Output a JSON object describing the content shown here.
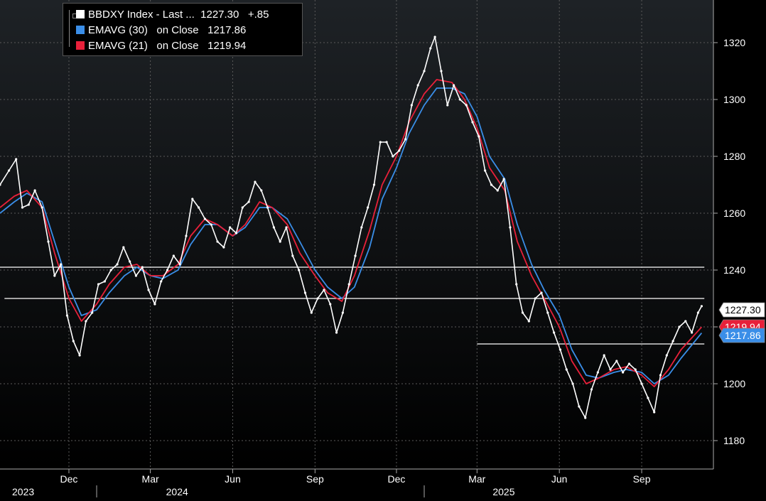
{
  "chart_data": {
    "type": "line",
    "colors": {
      "background_top": "#1e2226",
      "background_bottom": "#000000",
      "grid": "#5a5a5a",
      "price": "#ffffff",
      "ema30": "#3a8ee8",
      "ema21": "#e8203a"
    },
    "y_axis": {
      "position": "right",
      "ylim": [
        1170,
        1335
      ],
      "ticks": [
        1180,
        1200,
        1220,
        1240,
        1260,
        1280,
        1300,
        1320
      ],
      "tick_labels": [
        "1180",
        "1200",
        "",
        "1240",
        "1260",
        "1280",
        "1300",
        "1320"
      ]
    },
    "x_axis": {
      "months": [
        {
          "label": "Dec",
          "date": "2023-12-01"
        },
        {
          "label": "Mar",
          "date": "2024-03-01"
        },
        {
          "label": "Jun",
          "date": "2024-06-01"
        },
        {
          "label": "Sep",
          "date": "2024-09-01"
        },
        {
          "label": "Dec",
          "date": "2024-12-01"
        },
        {
          "label": "Mar",
          "date": "2025-03-01"
        },
        {
          "label": "Jun",
          "date": "2025-06-01"
        },
        {
          "label": "Sep",
          "date": "2025-09-01"
        }
      ],
      "years": [
        {
          "label": "2023",
          "date": "2023-09-25"
        },
        {
          "label": "2024",
          "date": "2024-03-15"
        },
        {
          "label": "2025",
          "date": "2025-03-15"
        }
      ],
      "year_dividers": [
        "2024-01-01",
        "2025-01-01"
      ]
    },
    "legend": {
      "placement": "top-left",
      "entries": [
        {
          "label": "BBDXY Index - Last ...  1227.30   +.85",
          "color": "#ffffff"
        },
        {
          "label": "EMAVG (30)   on Close   1217.86",
          "color": "#3a8ee8"
        },
        {
          "label": "EMAVG (21)   on Close   1219.94",
          "color": "#e8203a"
        }
      ]
    },
    "price_tags": [
      {
        "label": "1227.30",
        "value": 1227.3,
        "bg": "#ffffff",
        "fg": "#000000"
      },
      {
        "label": "1219.94",
        "value": 1219.94,
        "bg": "#e8203a",
        "fg": "#ffffff"
      },
      {
        "label": "1217.86",
        "value": 1217.86,
        "bg": "#3a8ee8",
        "fg": "#ffffff"
      }
    ],
    "horizontal_lines": [
      {
        "value": 1241,
        "from": "2023-09-15",
        "to": "2025-11-10"
      },
      {
        "value": 1230,
        "from": "2023-09-20",
        "to": "2025-11-10"
      },
      {
        "value": 1214,
        "from": "2025-03-01",
        "to": "2025-11-10"
      }
    ],
    "series": [
      {
        "key": "price",
        "name": "BBDXY Index",
        "points": [
          [
            "2023-09-15",
            1270
          ],
          [
            "2023-09-25",
            1275
          ],
          [
            "2023-10-03",
            1279
          ],
          [
            "2023-10-10",
            1262
          ],
          [
            "2023-10-17",
            1263
          ],
          [
            "2023-10-24",
            1268
          ],
          [
            "2023-11-01",
            1262
          ],
          [
            "2023-11-08",
            1250
          ],
          [
            "2023-11-15",
            1238
          ],
          [
            "2023-11-22",
            1242
          ],
          [
            "2023-11-29",
            1224
          ],
          [
            "2023-12-06",
            1215
          ],
          [
            "2023-12-13",
            1210
          ],
          [
            "2023-12-20",
            1222
          ],
          [
            "2023-12-27",
            1225
          ],
          [
            "2024-01-03",
            1235
          ],
          [
            "2024-01-10",
            1236
          ],
          [
            "2024-01-17",
            1240
          ],
          [
            "2024-01-24",
            1242
          ],
          [
            "2024-01-31",
            1248
          ],
          [
            "2024-02-07",
            1243
          ],
          [
            "2024-02-14",
            1238
          ],
          [
            "2024-02-21",
            1241
          ],
          [
            "2024-02-28",
            1233
          ],
          [
            "2024-03-06",
            1228
          ],
          [
            "2024-03-13",
            1236
          ],
          [
            "2024-03-20",
            1240
          ],
          [
            "2024-03-27",
            1245
          ],
          [
            "2024-04-03",
            1242
          ],
          [
            "2024-04-10",
            1252
          ],
          [
            "2024-04-17",
            1265
          ],
          [
            "2024-04-24",
            1262
          ],
          [
            "2024-05-01",
            1258
          ],
          [
            "2024-05-08",
            1256
          ],
          [
            "2024-05-15",
            1250
          ],
          [
            "2024-05-22",
            1248
          ],
          [
            "2024-05-29",
            1255
          ],
          [
            "2024-06-05",
            1253
          ],
          [
            "2024-06-12",
            1262
          ],
          [
            "2024-06-19",
            1264
          ],
          [
            "2024-06-26",
            1271
          ],
          [
            "2024-07-03",
            1268
          ],
          [
            "2024-07-10",
            1262
          ],
          [
            "2024-07-17",
            1255
          ],
          [
            "2024-07-24",
            1250
          ],
          [
            "2024-07-31",
            1255
          ],
          [
            "2024-08-07",
            1245
          ],
          [
            "2024-08-14",
            1240
          ],
          [
            "2024-08-21",
            1232
          ],
          [
            "2024-08-28",
            1225
          ],
          [
            "2024-09-04",
            1230
          ],
          [
            "2024-09-11",
            1233
          ],
          [
            "2024-09-18",
            1228
          ],
          [
            "2024-09-25",
            1218
          ],
          [
            "2024-10-02",
            1225
          ],
          [
            "2024-10-09",
            1235
          ],
          [
            "2024-10-16",
            1245
          ],
          [
            "2024-10-23",
            1255
          ],
          [
            "2024-10-30",
            1262
          ],
          [
            "2024-11-06",
            1270
          ],
          [
            "2024-11-13",
            1285
          ],
          [
            "2024-11-20",
            1285
          ],
          [
            "2024-11-27",
            1280
          ],
          [
            "2024-12-04",
            1282
          ],
          [
            "2024-12-11",
            1286
          ],
          [
            "2024-12-18",
            1298
          ],
          [
            "2024-12-25",
            1305
          ],
          [
            "2025-01-01",
            1310
          ],
          [
            "2025-01-08",
            1318
          ],
          [
            "2025-01-13",
            1322
          ],
          [
            "2025-01-20",
            1310
          ],
          [
            "2025-01-27",
            1298
          ],
          [
            "2025-02-03",
            1305
          ],
          [
            "2025-02-10",
            1300
          ],
          [
            "2025-02-17",
            1298
          ],
          [
            "2025-02-24",
            1292
          ],
          [
            "2025-03-03",
            1287
          ],
          [
            "2025-03-10",
            1275
          ],
          [
            "2025-03-17",
            1270
          ],
          [
            "2025-03-24",
            1268
          ],
          [
            "2025-03-31",
            1272
          ],
          [
            "2025-04-07",
            1255
          ],
          [
            "2025-04-14",
            1235
          ],
          [
            "2025-04-21",
            1225
          ],
          [
            "2025-04-28",
            1222
          ],
          [
            "2025-05-05",
            1230
          ],
          [
            "2025-05-12",
            1232
          ],
          [
            "2025-05-19",
            1225
          ],
          [
            "2025-05-26",
            1218
          ],
          [
            "2025-06-02",
            1212
          ],
          [
            "2025-06-09",
            1205
          ],
          [
            "2025-06-16",
            1200
          ],
          [
            "2025-06-23",
            1192
          ],
          [
            "2025-06-30",
            1188
          ],
          [
            "2025-07-07",
            1198
          ],
          [
            "2025-07-14",
            1204
          ],
          [
            "2025-07-21",
            1210
          ],
          [
            "2025-07-28",
            1205
          ],
          [
            "2025-08-04",
            1208
          ],
          [
            "2025-08-11",
            1204
          ],
          [
            "2025-08-18",
            1207
          ],
          [
            "2025-08-25",
            1205
          ],
          [
            "2025-09-01",
            1200
          ],
          [
            "2025-09-08",
            1195
          ],
          [
            "2025-09-15",
            1190
          ],
          [
            "2025-09-22",
            1203
          ],
          [
            "2025-09-29",
            1210
          ],
          [
            "2025-10-06",
            1215
          ],
          [
            "2025-10-13",
            1220
          ],
          [
            "2025-10-20",
            1222
          ],
          [
            "2025-10-27",
            1218
          ],
          [
            "2025-11-03",
            1225
          ],
          [
            "2025-11-07",
            1227.3
          ]
        ]
      },
      {
        "key": "ema21",
        "name": "EMAVG (21)",
        "points": [
          [
            "2023-09-15",
            1262
          ],
          [
            "2023-10-01",
            1266
          ],
          [
            "2023-10-15",
            1268
          ],
          [
            "2023-11-01",
            1262
          ],
          [
            "2023-11-15",
            1246
          ],
          [
            "2023-12-01",
            1230
          ],
          [
            "2023-12-15",
            1222
          ],
          [
            "2024-01-01",
            1228
          ],
          [
            "2024-01-15",
            1235
          ],
          [
            "2024-02-01",
            1241
          ],
          [
            "2024-02-15",
            1242
          ],
          [
            "2024-03-01",
            1238
          ],
          [
            "2024-03-15",
            1238
          ],
          [
            "2024-04-01",
            1242
          ],
          [
            "2024-04-15",
            1252
          ],
          [
            "2024-05-01",
            1258
          ],
          [
            "2024-05-15",
            1256
          ],
          [
            "2024-06-01",
            1252
          ],
          [
            "2024-06-15",
            1256
          ],
          [
            "2024-07-01",
            1264
          ],
          [
            "2024-07-15",
            1262
          ],
          [
            "2024-08-01",
            1256
          ],
          [
            "2024-08-15",
            1246
          ],
          [
            "2024-09-01",
            1238
          ],
          [
            "2024-09-15",
            1232
          ],
          [
            "2024-10-01",
            1229
          ],
          [
            "2024-10-15",
            1238
          ],
          [
            "2024-11-01",
            1254
          ],
          [
            "2024-11-15",
            1270
          ],
          [
            "2024-12-01",
            1280
          ],
          [
            "2024-12-15",
            1292
          ],
          [
            "2025-01-01",
            1302
          ],
          [
            "2025-01-15",
            1307
          ],
          [
            "2025-02-01",
            1306
          ],
          [
            "2025-02-15",
            1300
          ],
          [
            "2025-03-01",
            1290
          ],
          [
            "2025-03-15",
            1276
          ],
          [
            "2025-04-01",
            1268
          ],
          [
            "2025-04-15",
            1250
          ],
          [
            "2025-05-01",
            1238
          ],
          [
            "2025-05-15",
            1230
          ],
          [
            "2025-06-01",
            1220
          ],
          [
            "2025-06-15",
            1208
          ],
          [
            "2025-07-01",
            1200
          ],
          [
            "2025-07-15",
            1202
          ],
          [
            "2025-08-01",
            1205
          ],
          [
            "2025-08-15",
            1206
          ],
          [
            "2025-09-01",
            1203
          ],
          [
            "2025-09-15",
            1199
          ],
          [
            "2025-10-01",
            1205
          ],
          [
            "2025-10-15",
            1212
          ],
          [
            "2025-11-07",
            1219.94
          ]
        ]
      },
      {
        "key": "ema30",
        "name": "EMAVG (30)",
        "points": [
          [
            "2023-09-15",
            1260
          ],
          [
            "2023-10-01",
            1264
          ],
          [
            "2023-10-15",
            1267
          ],
          [
            "2023-11-01",
            1264
          ],
          [
            "2023-11-15",
            1250
          ],
          [
            "2023-12-01",
            1234
          ],
          [
            "2023-12-15",
            1224
          ],
          [
            "2024-01-01",
            1226
          ],
          [
            "2024-01-15",
            1232
          ],
          [
            "2024-02-01",
            1238
          ],
          [
            "2024-02-15",
            1241
          ],
          [
            "2024-03-01",
            1238
          ],
          [
            "2024-03-15",
            1237
          ],
          [
            "2024-04-01",
            1240
          ],
          [
            "2024-04-15",
            1249
          ],
          [
            "2024-05-01",
            1256
          ],
          [
            "2024-05-15",
            1256
          ],
          [
            "2024-06-01",
            1252
          ],
          [
            "2024-06-15",
            1255
          ],
          [
            "2024-07-01",
            1262
          ],
          [
            "2024-07-15",
            1262
          ],
          [
            "2024-08-01",
            1258
          ],
          [
            "2024-08-15",
            1250
          ],
          [
            "2024-09-01",
            1240
          ],
          [
            "2024-09-15",
            1234
          ],
          [
            "2024-10-01",
            1230
          ],
          [
            "2024-10-15",
            1234
          ],
          [
            "2024-11-01",
            1248
          ],
          [
            "2024-11-15",
            1265
          ],
          [
            "2024-12-01",
            1276
          ],
          [
            "2024-12-15",
            1288
          ],
          [
            "2025-01-01",
            1298
          ],
          [
            "2025-01-15",
            1304
          ],
          [
            "2025-02-01",
            1304
          ],
          [
            "2025-02-15",
            1302
          ],
          [
            "2025-03-01",
            1294
          ],
          [
            "2025-03-15",
            1280
          ],
          [
            "2025-04-01",
            1272
          ],
          [
            "2025-04-15",
            1256
          ],
          [
            "2025-05-01",
            1242
          ],
          [
            "2025-05-15",
            1233
          ],
          [
            "2025-06-01",
            1224
          ],
          [
            "2025-06-15",
            1212
          ],
          [
            "2025-07-01",
            1203
          ],
          [
            "2025-07-15",
            1202
          ],
          [
            "2025-08-01",
            1204
          ],
          [
            "2025-08-15",
            1205
          ],
          [
            "2025-09-01",
            1204
          ],
          [
            "2025-09-15",
            1200
          ],
          [
            "2025-10-01",
            1203
          ],
          [
            "2025-10-15",
            1209
          ],
          [
            "2025-11-07",
            1217.86
          ]
        ]
      }
    ]
  }
}
